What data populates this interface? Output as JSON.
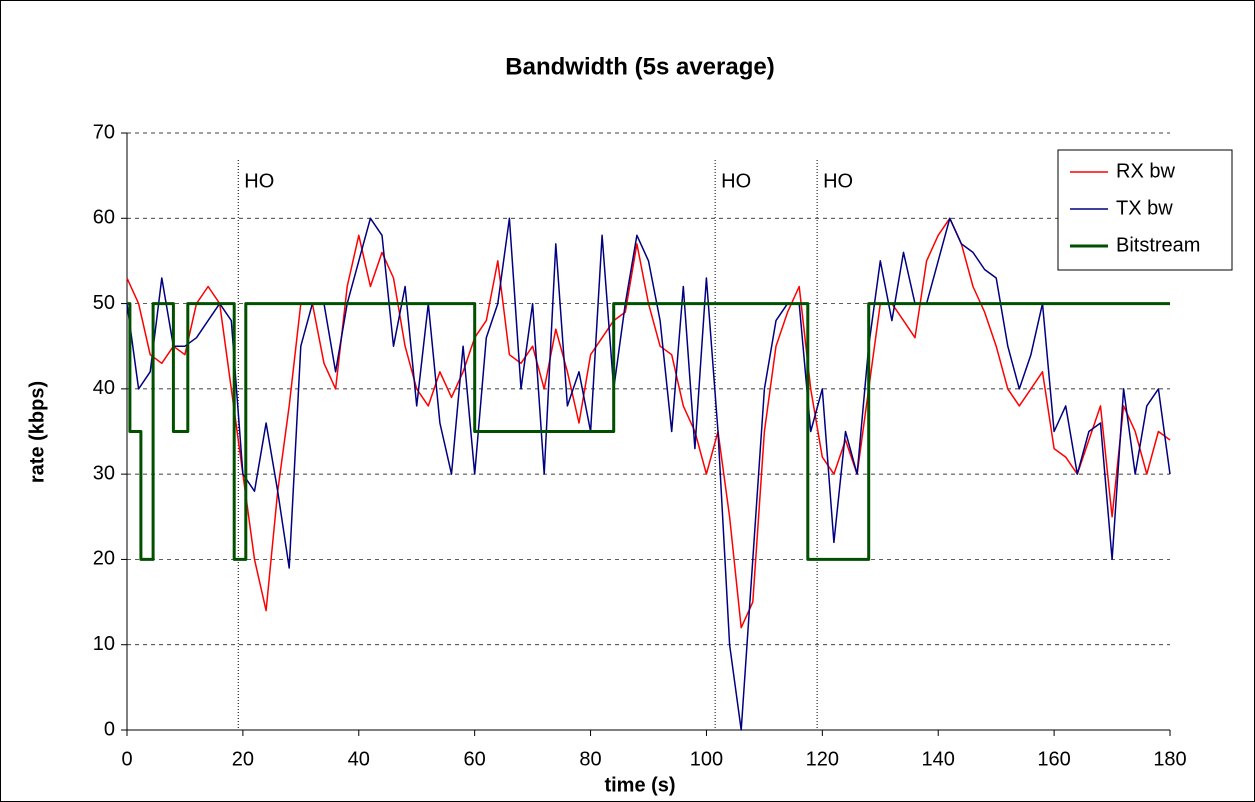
{
  "chart_data": {
    "type": "line",
    "title": "Bandwidth (5s average)",
    "xlabel": "time (s)",
    "ylabel": "rate (kbps)",
    "xlim": [
      0,
      180
    ],
    "xticks": [
      0,
      20,
      40,
      60,
      80,
      100,
      120,
      140,
      160,
      180
    ],
    "ylim": [
      0,
      70
    ],
    "yticks": [
      0,
      10,
      20,
      30,
      40,
      50,
      60,
      70
    ],
    "grid": true,
    "legend": "upper right",
    "annotations": [
      {
        "x": 19.2,
        "label": "HO"
      },
      {
        "x": 101.5,
        "label": "HO"
      },
      {
        "x": 119.1,
        "label": "HO"
      }
    ],
    "x": [
      0,
      2,
      4,
      6,
      8,
      10,
      12,
      14,
      16,
      18,
      20,
      22,
      24,
      26,
      28,
      30,
      32,
      34,
      36,
      38,
      40,
      42,
      44,
      46,
      48,
      50,
      52,
      54,
      56,
      58,
      60,
      62,
      64,
      66,
      68,
      70,
      72,
      74,
      76,
      78,
      80,
      82,
      84,
      86,
      88,
      90,
      92,
      94,
      96,
      98,
      100,
      102,
      104,
      106,
      108,
      110,
      112,
      114,
      116,
      118,
      120,
      122,
      124,
      126,
      128,
      130,
      132,
      134,
      136,
      138,
      140,
      142,
      144,
      146,
      148,
      150,
      152,
      154,
      156,
      158,
      160,
      162,
      164,
      166,
      168,
      170,
      172,
      174,
      176,
      178,
      180
    ],
    "series": [
      {
        "name": "RX bw",
        "color": "#ff0000",
        "values": [
          53,
          50,
          44,
          43,
          45,
          44,
          50,
          52,
          50,
          40,
          30,
          20,
          14,
          28,
          38,
          50,
          50,
          43,
          40,
          52,
          58,
          52,
          56,
          53,
          45,
          40,
          38,
          42,
          39,
          42,
          46,
          48,
          55,
          44,
          43,
          45,
          40,
          47,
          42,
          36,
          44,
          46,
          48,
          49,
          57,
          50,
          45,
          44,
          38,
          35,
          30,
          35,
          25,
          12,
          15,
          35,
          45,
          49,
          52,
          40,
          32,
          30,
          34,
          30,
          40,
          50,
          50,
          48,
          46,
          55,
          58,
          60,
          57,
          52,
          49,
          45,
          40,
          38,
          40,
          42,
          33,
          32,
          30,
          34,
          38,
          25,
          38,
          35,
          30,
          35,
          34
        ]
      },
      {
        "name": "TX bw",
        "color": "#000080",
        "values": [
          50,
          40,
          42,
          53,
          45,
          45,
          46,
          48,
          50,
          48,
          30,
          28,
          36,
          28,
          19,
          45,
          50,
          50,
          42,
          50,
          55,
          60,
          58,
          45,
          52,
          38,
          50,
          36,
          30,
          45,
          30,
          46,
          50,
          60,
          40,
          50,
          30,
          57,
          38,
          42,
          35,
          58,
          40,
          50,
          58,
          55,
          48,
          35,
          52,
          33,
          53,
          35,
          10,
          0,
          20,
          40,
          48,
          50,
          50,
          35,
          40,
          22,
          35,
          30,
          45,
          55,
          48,
          56,
          50,
          50,
          55,
          60,
          57,
          56,
          54,
          53,
          45,
          40,
          44,
          50,
          35,
          38,
          30,
          35,
          36,
          20,
          40,
          30,
          38,
          40,
          30
        ]
      },
      {
        "name": "Bitstream",
        "color": "#005000",
        "x": [
          0,
          0.5,
          0.5,
          2.4,
          2.4,
          4.5,
          4.5,
          8,
          8,
          10.5,
          10.5,
          18.5,
          18.5,
          20.5,
          20.5,
          60,
          60,
          84,
          84,
          117.5,
          117.5,
          128,
          128,
          180
        ],
        "values": [
          50,
          50,
          35,
          35,
          20,
          20,
          50,
          50,
          35,
          35,
          50,
          50,
          20,
          20,
          50,
          50,
          35,
          35,
          50,
          50,
          20,
          20,
          50,
          50
        ]
      }
    ]
  }
}
